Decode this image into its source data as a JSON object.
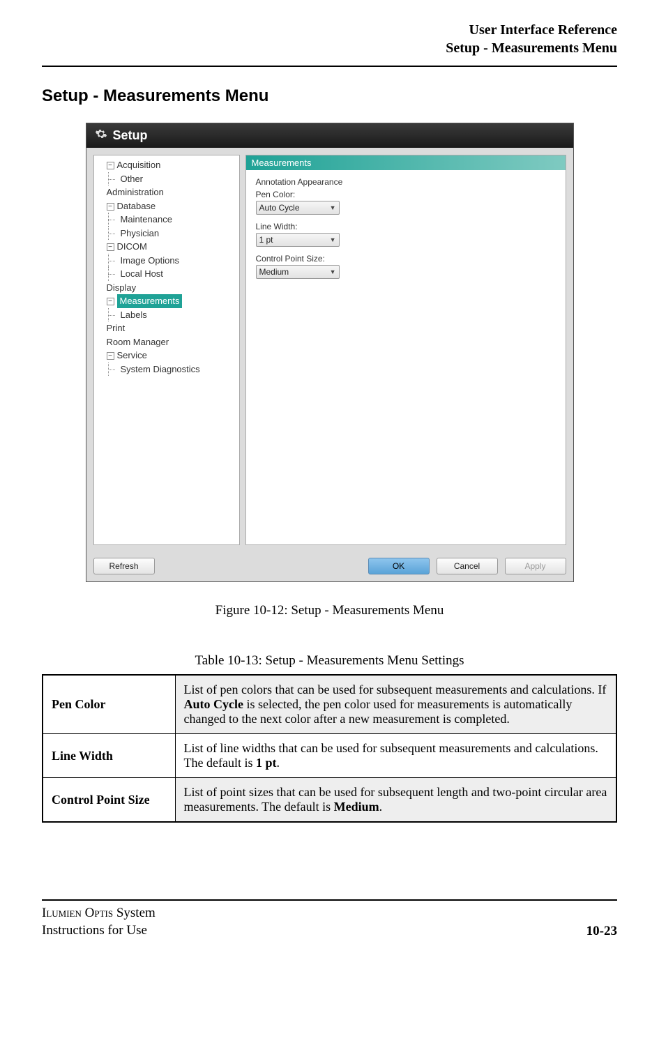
{
  "header": {
    "line1": "User Interface Reference",
    "line2": "Setup - Measurements Menu"
  },
  "section_title": "Setup - Measurements Menu",
  "setup_window": {
    "title": "Setup",
    "tree": [
      {
        "label": "Acquisition",
        "expander": "−",
        "level": 0
      },
      {
        "label": "Other",
        "level": 1
      },
      {
        "label": "Administration",
        "level": 0
      },
      {
        "label": "Database",
        "expander": "−",
        "level": 0
      },
      {
        "label": "Maintenance",
        "level": 1
      },
      {
        "label": "Physician",
        "level": 1
      },
      {
        "label": "DICOM",
        "expander": "−",
        "level": 0
      },
      {
        "label": "Image Options",
        "level": 1
      },
      {
        "label": "Local Host",
        "level": 1
      },
      {
        "label": "Display",
        "level": 0
      },
      {
        "label": "Measurements",
        "expander": "−",
        "level": 0,
        "selected": true
      },
      {
        "label": "Labels",
        "level": 1
      },
      {
        "label": "Print",
        "level": 0
      },
      {
        "label": "Room Manager",
        "level": 0
      },
      {
        "label": "Service",
        "expander": "−",
        "level": 0
      },
      {
        "label": "System Diagnostics",
        "level": 1
      }
    ],
    "panel": {
      "header": "Measurements",
      "group_label": "Annotation Appearance",
      "fields": {
        "pen_color": {
          "label": "Pen Color:",
          "value": "Auto Cycle"
        },
        "line_width": {
          "label": "Line Width:",
          "value": "1 pt"
        },
        "control_point_size": {
          "label": "Control Point Size:",
          "value": "Medium"
        }
      }
    },
    "buttons": {
      "refresh": "Refresh",
      "ok": "OK",
      "cancel": "Cancel",
      "apply": "Apply"
    }
  },
  "figure_caption": "Figure 10-12:  Setup - Measurements Menu",
  "table_caption": "Table 10-13:  Setup - Measurements Menu Settings",
  "table": {
    "rows": [
      {
        "key": "Pen Color",
        "desc_html": "List of pen colors that can be used for subsequent measurements and calculations.  If <b>Auto Cycle</b> is selected, the pen color used for measurements is automatically changed to the next color after a new measurement is completed."
      },
      {
        "key": "Line Width",
        "desc_html": "List of line widths that can be used for subsequent measurements and calculations. The default is <b>1 pt</b>."
      },
      {
        "key": "Control Point Size",
        "desc_html": "List of point sizes that can be used for subsequent length and two-point circular area measurements.  The default is <b>Medium</b>."
      }
    ]
  },
  "footer": {
    "left_line1_sc": "Ilumien Optis",
    "left_line1_rest": " System",
    "left_line2": "Instructions for Use",
    "right": "10-23"
  },
  "colors": {
    "accent": "#1fa296",
    "titlebar_dark": "#1a1a1a",
    "button_primary": "#6fb1de"
  }
}
